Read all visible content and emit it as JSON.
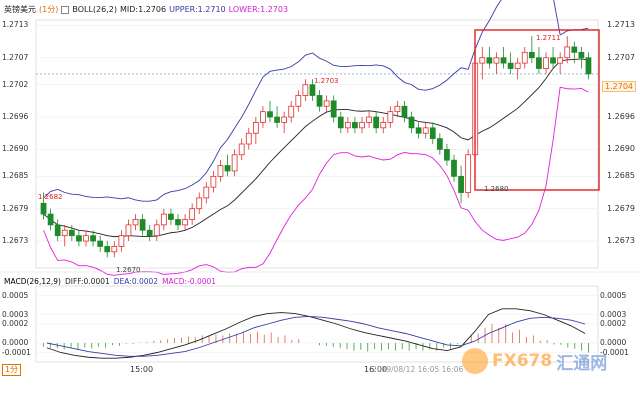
{
  "header": {
    "symbol": "英镑美元",
    "period": "(1分)",
    "boll": "BOLL(26,2)",
    "mid": "MID:1.2706",
    "upper": "UPPER:1.2710",
    "lower": "LOWER:1.2703"
  },
  "macd_header": {
    "name": "MACD(26,12,9)",
    "diff": "DIFF:0.0001",
    "dea": "DEA:0.0002",
    "macd": "MACD:-0.0001"
  },
  "price_axis": [
    "1.2713",
    "1.2707",
    "1.2702",
    "1.2696",
    "1.2690",
    "1.2685",
    "1.2679",
    "1.2673"
  ],
  "right_axis": [
    "1.2713",
    "1.2707",
    "1.2702",
    "1.2696",
    "1.2690",
    "1.2685",
    "1.2679",
    "1.2673"
  ],
  "current_price": "1.2704",
  "macd_axis_left": [
    "0.0005",
    "0.0003",
    "0.0002",
    "0.0000",
    "-0.0001"
  ],
  "macd_axis_right": [
    "0.0005",
    "0.0003",
    "0.0002",
    "0.0000",
    "-0.0001"
  ],
  "time_labels": [
    "15:00",
    "16:00"
  ],
  "stamp": "2019/08/12 16:05 16:06",
  "period_button": "1分",
  "annotations": {
    "left_high": "1.2682",
    "low": "1.2670",
    "mid_high": "1.2703",
    "box_high": "1.2711",
    "box_low": "1.2680"
  },
  "watermark": {
    "brand_a": "FX678",
    "brand_b": "汇通网"
  },
  "colors": {
    "up_candle": "#e03030",
    "down_candle": "#1e8a2a",
    "mid_line": "#222222",
    "upper_band": "#3a3aa8",
    "lower_band": "#e020e0",
    "highlight_box": "#e02020"
  },
  "chart_data": {
    "type": "candlestick",
    "title": "英镑美元 (1分)",
    "ylim": [
      1.2668,
      1.2714
    ],
    "x_labels": [
      "15:00",
      "16:00"
    ],
    "candles": [
      [
        1.268,
        1.2682,
        1.2677,
        1.2678
      ],
      [
        1.2678,
        1.2679,
        1.2675,
        1.2676
      ],
      [
        1.2676,
        1.2677,
        1.2673,
        1.2674
      ],
      [
        1.2674,
        1.2676,
        1.2672,
        1.2675
      ],
      [
        1.2675,
        1.2676,
        1.2673,
        1.2674
      ],
      [
        1.2674,
        1.2675,
        1.2672,
        1.2673
      ],
      [
        1.2673,
        1.2675,
        1.2672,
        1.2674
      ],
      [
        1.2674,
        1.2675,
        1.2672,
        1.2673
      ],
      [
        1.2673,
        1.2674,
        1.2671,
        1.2672
      ],
      [
        1.2672,
        1.2673,
        1.267,
        1.2671
      ],
      [
        1.2671,
        1.2673,
        1.267,
        1.2672
      ],
      [
        1.2672,
        1.2675,
        1.2671,
        1.2674
      ],
      [
        1.2674,
        1.2677,
        1.2673,
        1.2676
      ],
      [
        1.2676,
        1.2678,
        1.2675,
        1.2677
      ],
      [
        1.2677,
        1.2678,
        1.2674,
        1.2675
      ],
      [
        1.2675,
        1.2676,
        1.2673,
        1.2674
      ],
      [
        1.2674,
        1.2677,
        1.2673,
        1.2676
      ],
      [
        1.2676,
        1.2679,
        1.2675,
        1.2678
      ],
      [
        1.2678,
        1.2679,
        1.2676,
        1.2677
      ],
      [
        1.2677,
        1.2678,
        1.2675,
        1.2676
      ],
      [
        1.2676,
        1.2678,
        1.2675,
        1.2677
      ],
      [
        1.2677,
        1.268,
        1.2676,
        1.2679
      ],
      [
        1.2679,
        1.2682,
        1.2678,
        1.2681
      ],
      [
        1.2681,
        1.2684,
        1.268,
        1.2683
      ],
      [
        1.2683,
        1.2686,
        1.2682,
        1.2685
      ],
      [
        1.2685,
        1.2688,
        1.2684,
        1.2687
      ],
      [
        1.2687,
        1.2689,
        1.2685,
        1.2686
      ],
      [
        1.2686,
        1.269,
        1.2685,
        1.2689
      ],
      [
        1.2689,
        1.2692,
        1.2688,
        1.2691
      ],
      [
        1.2691,
        1.2694,
        1.269,
        1.2693
      ],
      [
        1.2693,
        1.2696,
        1.2691,
        1.2695
      ],
      [
        1.2695,
        1.2698,
        1.2694,
        1.2697
      ],
      [
        1.2697,
        1.2699,
        1.2695,
        1.2696
      ],
      [
        1.2696,
        1.2698,
        1.2694,
        1.2695
      ],
      [
        1.2695,
        1.2697,
        1.2693,
        1.2696
      ],
      [
        1.2696,
        1.2699,
        1.2695,
        1.2698
      ],
      [
        1.2698,
        1.2701,
        1.2697,
        1.27
      ],
      [
        1.27,
        1.2703,
        1.2699,
        1.2702
      ],
      [
        1.2702,
        1.2703,
        1.2699,
        1.27
      ],
      [
        1.27,
        1.2701,
        1.2697,
        1.2698
      ],
      [
        1.2698,
        1.27,
        1.2697,
        1.2699
      ],
      [
        1.2699,
        1.27,
        1.2695,
        1.2696
      ],
      [
        1.2696,
        1.2697,
        1.2693,
        1.2694
      ],
      [
        1.2694,
        1.2696,
        1.2693,
        1.2695
      ],
      [
        1.2695,
        1.2696,
        1.2693,
        1.2694
      ],
      [
        1.2694,
        1.2696,
        1.2693,
        1.2695
      ],
      [
        1.2695,
        1.2697,
        1.2694,
        1.2696
      ],
      [
        1.2696,
        1.2697,
        1.2693,
        1.2694
      ],
      [
        1.2694,
        1.2696,
        1.2693,
        1.2695
      ],
      [
        1.2695,
        1.2698,
        1.2694,
        1.2697
      ],
      [
        1.2697,
        1.2699,
        1.2696,
        1.2698
      ],
      [
        1.2698,
        1.2699,
        1.2695,
        1.2696
      ],
      [
        1.2696,
        1.2697,
        1.2693,
        1.2694
      ],
      [
        1.2694,
        1.2695,
        1.2692,
        1.2693
      ],
      [
        1.2693,
        1.2695,
        1.2692,
        1.2694
      ],
      [
        1.2694,
        1.2695,
        1.2691,
        1.2692
      ],
      [
        1.2692,
        1.2693,
        1.2689,
        1.269
      ],
      [
        1.269,
        1.2691,
        1.2687,
        1.2688
      ],
      [
        1.2688,
        1.2689,
        1.2684,
        1.2685
      ],
      [
        1.2685,
        1.2687,
        1.268,
        1.2682
      ],
      [
        1.2682,
        1.269,
        1.2681,
        1.2689
      ],
      [
        1.2689,
        1.2709,
        1.2688,
        1.2706
      ],
      [
        1.2706,
        1.2709,
        1.2703,
        1.2707
      ],
      [
        1.2707,
        1.2709,
        1.2705,
        1.2706
      ],
      [
        1.2706,
        1.2708,
        1.2704,
        1.2707
      ],
      [
        1.2707,
        1.2709,
        1.2705,
        1.2706
      ],
      [
        1.2706,
        1.2708,
        1.2704,
        1.2705
      ],
      [
        1.2705,
        1.2707,
        1.2703,
        1.2706
      ],
      [
        1.2706,
        1.2709,
        1.2705,
        1.2708
      ],
      [
        1.2708,
        1.2711,
        1.2706,
        1.2707
      ],
      [
        1.2707,
        1.2709,
        1.2704,
        1.2705
      ],
      [
        1.2705,
        1.2708,
        1.2704,
        1.2707
      ],
      [
        1.2707,
        1.2709,
        1.2705,
        1.2706
      ],
      [
        1.2706,
        1.2708,
        1.2704,
        1.2707
      ],
      [
        1.2707,
        1.2711,
        1.2706,
        1.2709
      ],
      [
        1.2709,
        1.271,
        1.2706,
        1.2708
      ],
      [
        1.2708,
        1.2709,
        1.2705,
        1.2707
      ],
      [
        1.2707,
        1.2708,
        1.2703,
        1.2704
      ]
    ],
    "macd_ylim": [
      -0.0002,
      0.0006
    ],
    "diff": [
      -5e-05,
      -0.0001,
      -0.00013,
      -0.00015,
      -0.00016,
      -0.00016,
      -0.00015,
      -0.00013,
      -0.0001,
      -6e-05,
      -2e-05,
      3e-05,
      9e-05,
      0.00015,
      0.00022,
      0.00028,
      0.00031,
      0.00032,
      0.00031,
      0.00028,
      0.00024,
      0.0002,
      0.00015,
      0.00011,
      8e-05,
      5e-05,
      2e-05,
      -2e-05,
      -6e-05,
      -8e-05,
      -4e-05,
      0.00012,
      0.0003,
      0.00036,
      0.00036,
      0.00034,
      0.0003,
      0.00024,
      0.00018,
      0.0001
    ],
    "dea": [
      0.0,
      -3e-05,
      -6e-05,
      -9e-05,
      -0.00011,
      -0.00013,
      -0.00014,
      -0.00014,
      -0.00013,
      -0.00011,
      -9e-05,
      -5e-05,
      0.0,
      5e-05,
      0.0001,
      0.00016,
      0.0002,
      0.00024,
      0.00027,
      0.00028,
      0.00027,
      0.00025,
      0.00023,
      0.0002,
      0.00016,
      0.00013,
      0.0001,
      6e-05,
      2e-05,
      -2e-05,
      -3e-05,
      2e-05,
      0.0001,
      0.00016,
      0.00022,
      0.00026,
      0.00027,
      0.00026,
      0.00024,
      0.0002
    ],
    "hist": [
      -5e-05,
      -7e-05,
      -7e-05,
      -6e-05,
      -5e-05,
      -3e-05,
      -1e-05,
      1e-05,
      3e-05,
      5e-05,
      7e-05,
      8e-05,
      9e-05,
      0.0001,
      0.00012,
      0.00012,
      0.00011,
      8e-05,
      4e-05,
      0.0,
      -3e-05,
      -5e-05,
      -8e-05,
      -9e-05,
      -8e-05,
      -8e-05,
      -8e-05,
      -8e-05,
      -8e-05,
      -6e-05,
      -1e-05,
      0.0001,
      0.0002,
      0.0002,
      0.00014,
      8e-05,
      3e-05,
      -2e-05,
      -6e-05,
      -0.0001
    ]
  }
}
